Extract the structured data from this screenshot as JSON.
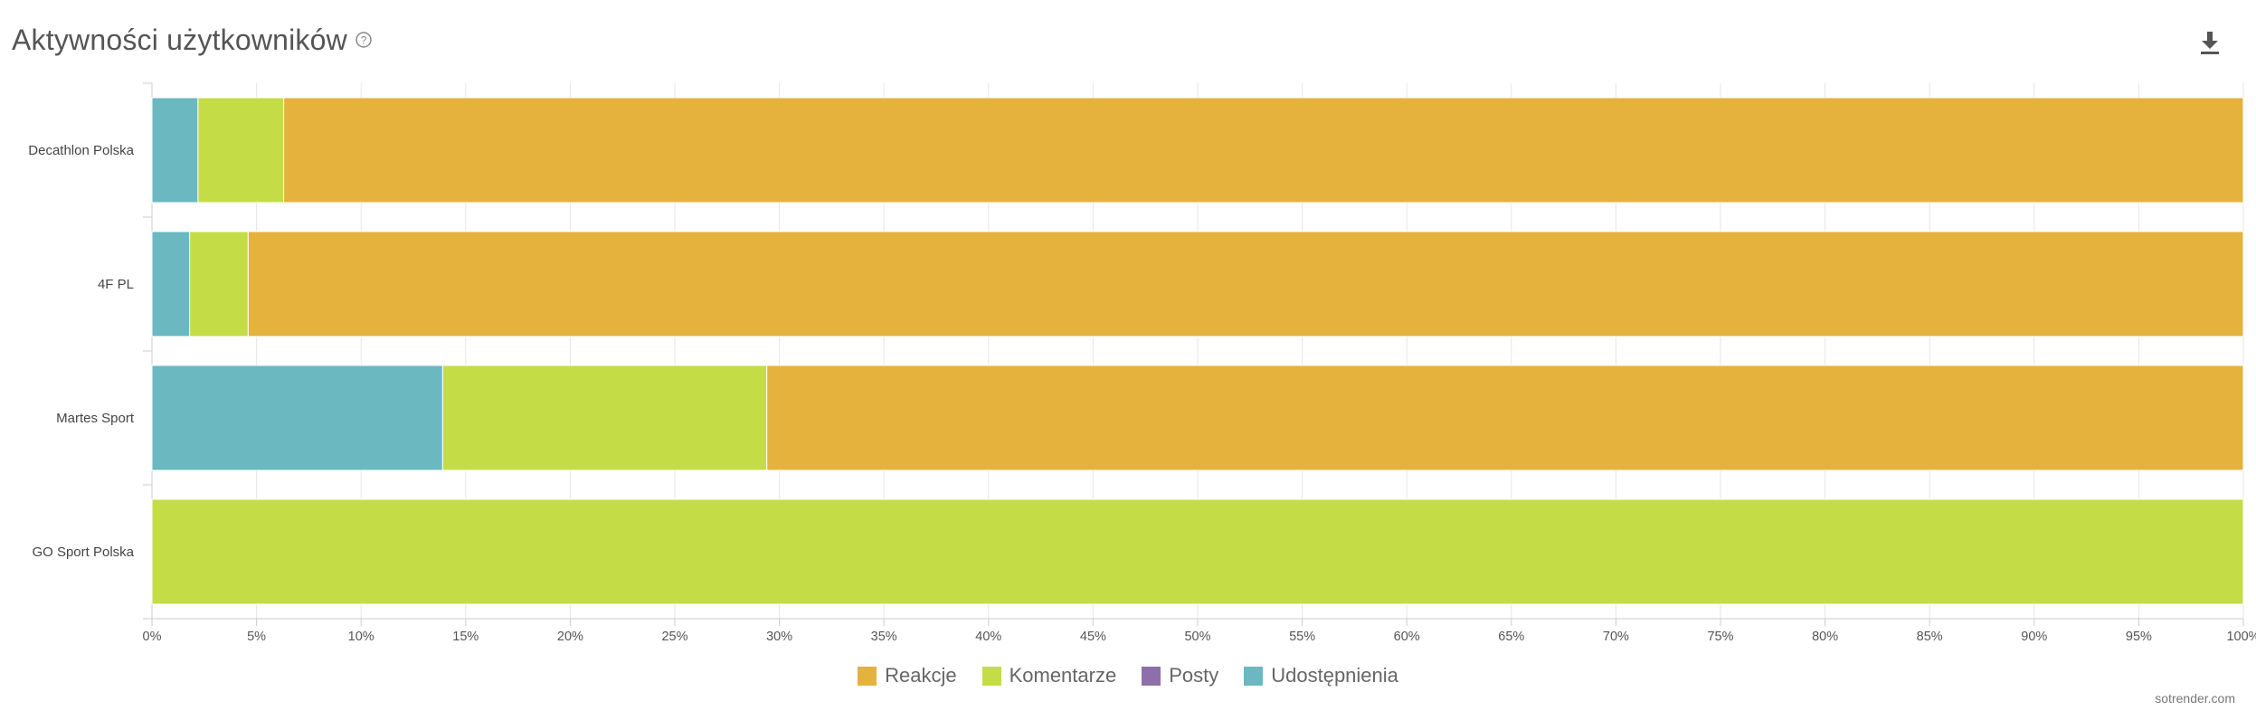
{
  "header": {
    "title": "Aktywności użytkowników",
    "help_icon": "help-circle-icon",
    "download_icon": "download-icon"
  },
  "credit": "sotrender.com",
  "colors": {
    "Reakcje": "#e5b23d",
    "Komentarze": "#c4dd46",
    "Posty": "#8e6fab",
    "Udostępnienia": "#6bb8c1"
  },
  "chart_data": {
    "type": "bar",
    "orientation": "horizontal",
    "stacked": "percent",
    "title": "Aktywności użytkowników",
    "categories": [
      "Decathlon Polska",
      "4F PL",
      "Martes Sport",
      "GO Sport Polska"
    ],
    "series": [
      {
        "name": "Udostępnienia",
        "values": [
          2.2,
          1.8,
          13.9,
          0
        ]
      },
      {
        "name": "Posty",
        "values": [
          0,
          0,
          0,
          0
        ]
      },
      {
        "name": "Komentarze",
        "values": [
          4.1,
          2.8,
          15.5,
          100
        ]
      },
      {
        "name": "Reakcje",
        "values": [
          93.7,
          95.4,
          70.6,
          0
        ]
      }
    ],
    "x_ticks": [
      "0%",
      "5%",
      "10%",
      "15%",
      "20%",
      "25%",
      "30%",
      "35%",
      "40%",
      "45%",
      "50%",
      "55%",
      "60%",
      "65%",
      "70%",
      "75%",
      "80%",
      "85%",
      "90%",
      "95%",
      "100%"
    ],
    "xlim": [
      0,
      100
    ],
    "grid": true,
    "legend": {
      "position": "bottom-center",
      "items": [
        "Reakcje",
        "Komentarze",
        "Posty",
        "Udostępnienia"
      ]
    }
  }
}
